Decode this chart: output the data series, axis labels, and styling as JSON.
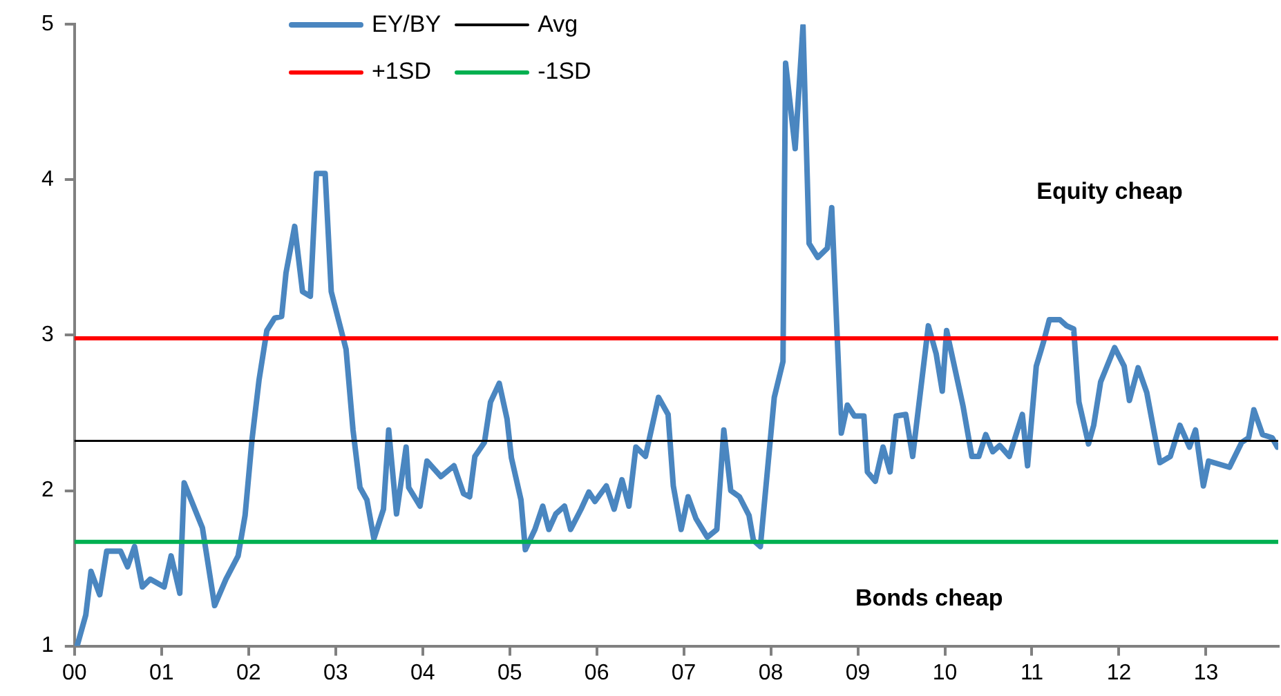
{
  "chart_data": {
    "type": "line",
    "marker": "none",
    "legend": "top",
    "grid": false,
    "xlim": [
      0,
      13.83
    ],
    "xticks": [
      {
        "value": 0,
        "label": "00"
      },
      {
        "value": 1,
        "label": "01"
      },
      {
        "value": 2,
        "label": "02"
      },
      {
        "value": 3,
        "label": "03"
      },
      {
        "value": 4,
        "label": "04"
      },
      {
        "value": 5,
        "label": "05"
      },
      {
        "value": 6,
        "label": "06"
      },
      {
        "value": 7,
        "label": "07"
      },
      {
        "value": 8,
        "label": "08"
      },
      {
        "value": 9,
        "label": "09"
      },
      {
        "value": 10,
        "label": "10"
      },
      {
        "value": 11,
        "label": "11"
      },
      {
        "value": 12,
        "label": "12"
      },
      {
        "value": 13,
        "label": "13"
      }
    ],
    "ylim": [
      1,
      5
    ],
    "yticks": [
      1,
      2,
      3,
      4,
      5
    ],
    "annotations": [
      "Equity cheap",
      "Bonds cheap"
    ],
    "series": [
      {
        "name": "EY/BY",
        "color": "#4a86c0",
        "x": [
          0.03,
          0.13,
          0.19,
          0.29,
          0.37,
          0.53,
          0.61,
          0.69,
          0.78,
          0.87,
          1.03,
          1.11,
          1.21,
          1.26,
          1.47,
          1.61,
          1.74,
          1.88,
          1.96,
          2.04,
          2.12,
          2.21,
          2.3,
          2.38,
          2.43,
          2.53,
          2.62,
          2.71,
          2.78,
          2.88,
          2.95,
          3.12,
          3.2,
          3.28,
          3.36,
          3.44,
          3.55,
          3.61,
          3.7,
          3.81,
          3.84,
          3.97,
          4.05,
          4.21,
          4.36,
          4.47,
          4.54,
          4.6,
          4.71,
          4.78,
          4.88,
          4.97,
          5.02,
          5.13,
          5.18,
          5.29,
          5.38,
          5.45,
          5.53,
          5.63,
          5.7,
          5.82,
          5.91,
          5.98,
          6.11,
          6.2,
          6.29,
          6.37,
          6.45,
          6.56,
          6.71,
          6.82,
          6.88,
          6.97,
          7.05,
          7.14,
          7.27,
          7.38,
          7.46,
          7.54,
          7.64,
          7.75,
          7.8,
          7.88,
          8.04,
          8.14,
          8.17,
          8.28,
          8.37,
          8.44,
          8.54,
          8.65,
          8.7,
          8.81,
          8.88,
          8.96,
          9.07,
          9.11,
          9.2,
          9.29,
          9.37,
          9.44,
          9.55,
          9.63,
          9.81,
          9.9,
          9.97,
          10.02,
          10.21,
          10.31,
          10.39,
          10.47,
          10.55,
          10.63,
          10.74,
          10.89,
          10.95,
          11.05,
          11.13,
          11.2,
          11.32,
          11.4,
          11.48,
          11.54,
          11.65,
          11.71,
          11.79,
          11.95,
          12.06,
          12.12,
          12.22,
          12.32,
          12.47,
          12.59,
          12.7,
          12.81,
          12.88,
          12.97,
          13.03,
          13.27,
          13.41,
          13.49,
          13.55,
          13.65,
          13.76,
          13.82
        ],
        "values": [
          1.0,
          1.2,
          1.48,
          1.33,
          1.61,
          1.61,
          1.51,
          1.64,
          1.38,
          1.43,
          1.38,
          1.58,
          1.34,
          2.05,
          1.76,
          1.26,
          1.43,
          1.58,
          1.84,
          2.33,
          2.71,
          3.03,
          3.11,
          3.12,
          3.4,
          3.7,
          3.28,
          3.25,
          4.04,
          4.04,
          3.28,
          2.91,
          2.39,
          2.02,
          1.94,
          1.69,
          1.88,
          2.39,
          1.85,
          2.28,
          2.02,
          1.9,
          2.19,
          2.09,
          2.16,
          1.98,
          1.96,
          2.22,
          2.31,
          2.57,
          2.69,
          2.46,
          2.21,
          1.94,
          1.62,
          1.75,
          1.9,
          1.75,
          1.85,
          1.9,
          1.75,
          1.88,
          1.99,
          1.93,
          2.03,
          1.88,
          2.07,
          1.9,
          2.28,
          2.22,
          2.6,
          2.49,
          2.03,
          1.75,
          1.96,
          1.82,
          1.7,
          1.75,
          2.39,
          2.0,
          1.96,
          1.84,
          1.68,
          1.64,
          2.6,
          2.83,
          4.75,
          4.2,
          4.99,
          3.59,
          3.5,
          3.56,
          3.82,
          2.37,
          2.55,
          2.48,
          2.48,
          2.12,
          2.06,
          2.28,
          2.12,
          2.48,
          2.49,
          2.22,
          3.06,
          2.88,
          2.64,
          3.03,
          2.54,
          2.22,
          2.22,
          2.36,
          2.25,
          2.29,
          2.22,
          2.49,
          2.16,
          2.8,
          2.95,
          3.1,
          3.1,
          3.06,
          3.04,
          2.57,
          2.3,
          2.42,
          2.7,
          2.92,
          2.8,
          2.58,
          2.79,
          2.63,
          2.18,
          2.22,
          2.42,
          2.28,
          2.39,
          2.03,
          2.19,
          2.15,
          2.31,
          2.34,
          2.52,
          2.36,
          2.34,
          2.28
        ]
      },
      {
        "name": "Avg",
        "color": "#000000",
        "x": [
          0,
          13.83
        ],
        "values": [
          2.32,
          2.32
        ]
      },
      {
        "name": "+1SD",
        "color": "#ff0000",
        "x": [
          0,
          13.83
        ],
        "values": [
          2.98,
          2.98
        ]
      },
      {
        "name": "-1SD",
        "color": "#00b050",
        "x": [
          0,
          13.83
        ],
        "values": [
          1.67,
          1.67
        ]
      }
    ]
  }
}
